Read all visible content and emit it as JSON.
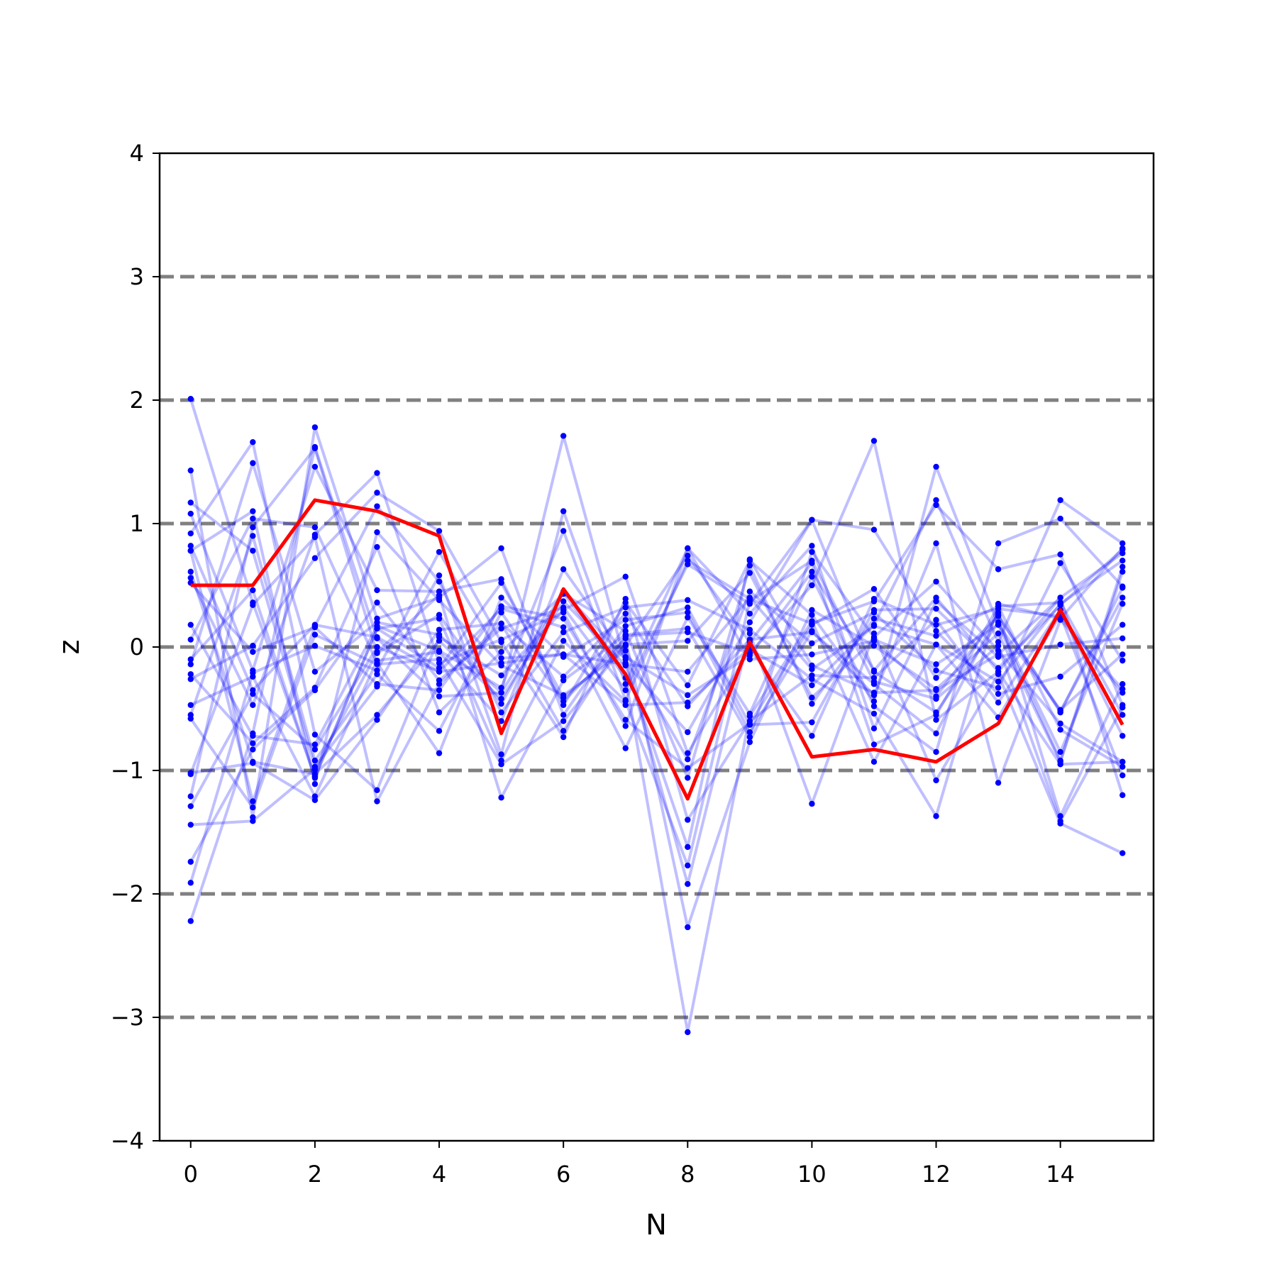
{
  "chart_data": {
    "type": "line",
    "xlabel": "N",
    "ylabel": "z",
    "xlim": [
      -0.5,
      15.5
    ],
    "ylim": [
      -4,
      4
    ],
    "x_ticks": [
      0,
      2,
      4,
      6,
      8,
      10,
      12,
      14
    ],
    "y_ticks": [
      -4,
      -3,
      -2,
      -1,
      0,
      1,
      2,
      3,
      4
    ],
    "y_tick_labels": [
      "−4",
      "−3",
      "−2",
      "−1",
      "0",
      "1",
      "2",
      "3",
      "4"
    ],
    "reference_lines": [
      -3,
      -2,
      -1,
      0,
      1,
      2,
      3
    ],
    "grid": false,
    "legend": "none",
    "colors": {
      "samples": "#0000ff",
      "highlight": "#ff0000",
      "reference": "#808080"
    },
    "x": [
      0,
      1,
      2,
      3,
      4,
      5,
      6,
      7,
      8,
      9,
      10,
      11,
      12,
      13,
      14,
      15
    ],
    "highlight_series": [
      0.5,
      0.5,
      1.19,
      1.1,
      0.9,
      -0.7,
      0.47,
      -0.22,
      -1.23,
      0.04,
      -0.89,
      -0.83,
      -0.93,
      -0.62,
      0.3,
      -0.63
    ],
    "series": [
      {
        "values": [
          2.01,
          0.36,
          -1.05,
          0.15,
          0.23,
          -0.92,
          0.05,
          -0.44,
          -1.77,
          0.37,
          0.7,
          -0.28,
          -0.42,
          0.01,
          -1.41,
          -0.49
        ]
      },
      {
        "values": [
          1.43,
          -1.38,
          1.78,
          0.23,
          0.4,
          0.8,
          -0.55,
          0.17,
          0.32,
          -0.63,
          -0.61,
          0.3,
          0.31,
          -0.17,
          0.34,
          0.79
        ]
      },
      {
        "values": [
          1.17,
          0.78,
          -0.97,
          -0.32,
          0.58,
          -0.87,
          1.1,
          -0.3,
          0.8,
          -0.1,
          -0.06,
          0.05,
          -0.4,
          0.26,
          -0.53,
          0.48
        ]
      },
      {
        "values": [
          1.08,
          -0.19,
          1.46,
          0.46,
          0.45,
          0.55,
          -0.47,
          0.36,
          -0.31,
          0.7,
          0.26,
          -0.44,
          1.46,
          0.18,
          -0.92,
          0.65
        ]
      },
      {
        "values": [
          0.92,
          1.66,
          -0.71,
          -1.16,
          0.08,
          -0.23,
          0.3,
          0.57,
          -0.86,
          -0.02,
          -0.31,
          0.18,
          1.19,
          0.04,
          1.19,
          0.84
        ]
      },
      {
        "values": [
          0.82,
          -0.35,
          0.18,
          0.08,
          -0.2,
          0.31,
          0.16,
          -0.82,
          0.24,
          -0.54,
          0.57,
          -0.48,
          -0.85,
          0.84,
          1.04,
          0.49
        ]
      },
      {
        "values": [
          0.78,
          1.1,
          -1.11,
          0.93,
          0.38,
          -0.15,
          -0.39,
          -0.03,
          -0.91,
          0.45,
          0.03,
          0.28,
          -0.19,
          -0.33,
          0.68,
          -0.11
        ]
      },
      {
        "values": [
          0.56,
          -0.47,
          0.91,
          1.41,
          -0.13,
          0.06,
          0.28,
          -0.64,
          0.8,
          0.27,
          0.82,
          -0.66,
          0.37,
          -0.08,
          0.02,
          0.07
        ]
      },
      {
        "values": [
          0.18,
          -0.72,
          -0.79,
          0.17,
          -0.03,
          -0.33,
          0.94,
          -0.43,
          0.7,
          0.39,
          0.19,
          0.37,
          1.15,
          0.63,
          0.75,
          -0.47
        ]
      },
      {
        "values": [
          0.06,
          1.04,
          0.97,
          -0.13,
          -0.86,
          0.4,
          -0.08,
          0.22,
          0.28,
          -0.69,
          0.13,
          -0.39,
          0.84,
          -1.1,
          0.22,
          -0.34
        ]
      },
      {
        "values": [
          -0.14,
          1.49,
          -0.2,
          0.2,
          0.1,
          -0.37,
          1.71,
          -0.13,
          -0.69,
          0.2,
          1.03,
          0.95,
          0.13,
          -0.38,
          -0.24,
          0.18
        ]
      },
      {
        "values": [
          -0.22,
          -0.78,
          -0.33,
          0.81,
          -0.53,
          -0.04,
          0.43,
          0.13,
          -1.06,
          0.66,
          -0.46,
          0.23,
          0.09,
          0.33,
          -0.67,
          -0.97
        ]
      },
      {
        "values": [
          -0.26,
          0.01,
          0.72,
          1.25,
          0.94,
          0.04,
          -0.73,
          0.39,
          -1.4,
          -0.6,
          -0.23,
          -0.25,
          0.22,
          -0.45,
          0.3,
          -0.72
        ]
      },
      {
        "values": [
          -0.47,
          -0.24,
          -1.21,
          -0.11,
          -0.04,
          -0.6,
          0.63,
          -0.08,
          -0.39,
          -0.07,
          0.61,
          -0.19,
          0.4,
          -0.2,
          0.4,
          -1.2
        ]
      },
      {
        "values": [
          -0.55,
          0.9,
          -0.92,
          -0.22,
          -0.68,
          0.28,
          -0.44,
          0.07,
          -2.27,
          -0.77,
          0.3,
          0.01,
          -0.34,
          0.11,
          -0.93,
          0.61
        ]
      },
      {
        "values": [
          -0.58,
          -1.3,
          0.1,
          -0.14,
          -0.1,
          -0.95,
          -0.6,
          0.02,
          0.05,
          0.6,
          -0.41,
          0.06,
          -0.14,
          0.18,
          -0.51,
          -0.06
        ]
      },
      {
        "values": [
          -1.02,
          -0.94,
          -1.24,
          -0.59,
          0.14,
          0.19,
          -0.24,
          0.27,
          -0.48,
          0.06,
          0.12,
          -0.3,
          -0.7,
          0.28,
          -1.37,
          -0.3
        ]
      },
      {
        "values": [
          -1.21,
          0.97,
          1.61,
          -0.05,
          0.26,
          -0.46,
          0.44,
          -0.25,
          -3.12,
          -0.56,
          0.21,
          -0.93,
          0.02,
          -0.28,
          0.35,
          0.7
        ]
      },
      {
        "values": [
          -1.29,
          -0.38,
          -0.83,
          0.0,
          -0.2,
          -0.13,
          -0.06,
          -0.14,
          -0.2,
          0.4,
          -0.18,
          0.17,
          0.02,
          -0.57,
          0.26,
          -1.04
        ]
      },
      {
        "values": [
          -1.44,
          -1.41,
          -0.99,
          -0.04,
          0.42,
          -1.22,
          -0.27,
          0.1,
          0.15,
          -0.73,
          0.77,
          0.08,
          0.53,
          -0.03,
          -0.62,
          -0.93
        ]
      },
      {
        "values": [
          -1.74,
          -0.83,
          -0.35,
          0.36,
          -0.27,
          0.15,
          0.32,
          -0.35,
          0.67,
          0.35,
          1.03,
          -0.2,
          -0.53,
          0.2,
          -0.85,
          0.35
        ]
      },
      {
        "values": [
          -1.91,
          -0.21,
          0.01,
          -0.19,
          0.77,
          -0.09,
          -0.06,
          -0.47,
          -0.45,
          -0.01,
          -0.72,
          0.39,
          0.18,
          0.31,
          0.25,
          -0.37
        ]
      },
      {
        "values": [
          -2.22,
          -0.7,
          1.62,
          0.07,
          -0.4,
          -0.37,
          0.45,
          -0.1,
          -1.92,
          0.11,
          -1.27,
          0.11,
          -1.08,
          -0.22,
          -1.43,
          -1.67
        ]
      },
      {
        "values": [
          0.61,
          -0.93,
          -1.03,
          -0.55,
          0.05,
          -0.42,
          0.37,
          -0.15,
          -1.62,
          0.71,
          -0.15,
          -0.37,
          -0.35,
          -0.06,
          0.4,
          0.76
        ]
      },
      {
        "values": [
          -1.03,
          0.34,
          0.89,
          -1.25,
          -0.3,
          0.19,
          -0.68,
          0.09,
          0.12,
          -0.05,
          0.5,
          1.67,
          -0.59,
          -0.2,
          -0.95,
          -0.93
        ]
      },
      {
        "values": [
          0.78,
          -1.25,
          0.17,
          1.14,
          0.53,
          -0.53,
          0.12,
          0.32,
          0.38,
          0.14,
          -0.26,
          -0.54,
          -1.37,
          0.35,
          0.23,
          0.8
        ]
      },
      {
        "values": [
          -0.1,
          0.46,
          -1.06,
          0.15,
          -0.17,
          0.52,
          -0.41,
          0.01,
          0.74,
          0.04,
          0.68,
          -0.79,
          -0.55,
          0.33,
          0.36,
          -0.55
        ]
      },
      {
        "values": [
          0.52,
          -0.04,
          0.16,
          -0.3,
          -0.35,
          0.33,
          0.23,
          -0.59,
          -0.98,
          -0.62,
          0.18,
          0.47,
          -0.25,
          0.25,
          -0.52,
          0.4
        ]
      }
    ]
  }
}
